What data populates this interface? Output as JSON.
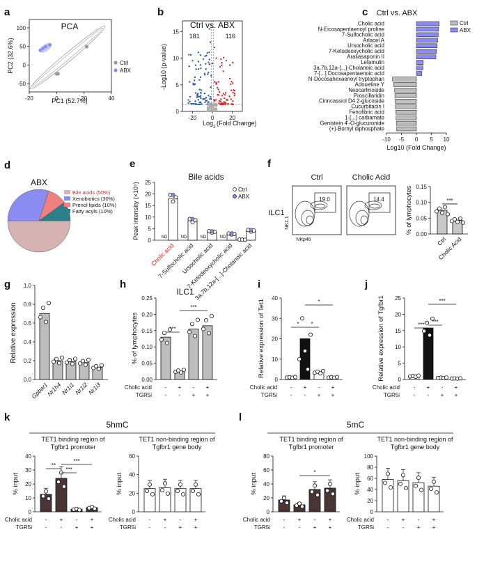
{
  "panel_labels": {
    "a": "a",
    "b": "b",
    "c": "c",
    "d": "d",
    "e": "e",
    "f": "f",
    "g": "g",
    "h": "h",
    "i": "i",
    "j": "j",
    "k": "k",
    "l": "l"
  },
  "colors": {
    "ctrl": "#bdbdbd",
    "abx": "#8b8cf2",
    "red": "#d62728",
    "blue": "#2c5ea8",
    "pink": "#d6b3b3",
    "teal": "#2d7f8a",
    "salmon": "#f08080",
    "dark": "#4a3434",
    "cholic_red": "#e02020"
  },
  "treatment_labels": {
    "cholic": "Cholic acid",
    "tgr5i": "TGR5i",
    "minus": "-",
    "plus": "+"
  },
  "chart_data": [
    {
      "id": "a",
      "type": "scatter",
      "title": "PCA",
      "xlabel": "PC1 (52.7%)",
      "ylabel": "PC2 (32.6%)",
      "xlim": [
        -20,
        40
      ],
      "ylim": [
        -100,
        100
      ],
      "xticks": [
        "-20",
        "0",
        "20",
        "40"
      ],
      "yticks": [
        "100",
        "50",
        "0",
        "-50"
      ],
      "legend": [
        "Ctrl",
        "ABX"
      ],
      "series": [
        {
          "name": "Ctrl",
          "points": [
            [
              0,
              -50
            ],
            [
              1,
              -50
            ],
            [
              22,
              25
            ]
          ]
        },
        {
          "name": "ABX",
          "points": [
            [
              -10,
              20
            ],
            [
              -8,
              25
            ],
            [
              -12,
              15
            ],
            [
              -5,
              30
            ]
          ]
        }
      ]
    },
    {
      "id": "b",
      "type": "scatter",
      "title": "Ctrl vs. ABX",
      "xlabel": "Log2 (Fold Change)",
      "ylabel": "-Log10 (p-value)",
      "xticks": [
        "-20",
        "0",
        "20"
      ],
      "yticks": [
        "15",
        "10",
        "5",
        "0"
      ],
      "count_down": "181",
      "count_up": "116",
      "xlim": [
        -30,
        30
      ],
      "ylim": [
        0,
        17
      ]
    },
    {
      "id": "c",
      "type": "bar",
      "title": "Ctrl vs. ABX",
      "xlabel": "Log10 (Fold Change)",
      "xlim": [
        -10,
        10
      ],
      "xticks": [
        "-10",
        "-5",
        "0",
        "5",
        "10"
      ],
      "legend": [
        "Ctrl",
        "ABX"
      ],
      "categories": [
        "Cholic acid",
        "N-Eicosapentaenoyl proline",
        "7-Sulfocholic acid",
        "Arlacel A",
        "Ursocholic acid",
        "7-Ketodeoxycholic acid",
        "Araliasaponin II",
        "Lefamulin",
        "3a,7b,12a-[...]-Cholanoic acid",
        "7-[...] Docosapentaenoic acid",
        "N-Docosahexaenoyl tryptophan",
        "Adouetine Y",
        "Neocarlinoside",
        "Proscillaridin",
        "Cinncassiol D4 2-glucoside",
        "Cucurbitacin I",
        "Fenofibric acid",
        "1-[...] carbamate",
        "Genistein 4'-O-glucuronide",
        "(+)-Bornyl diphosphate"
      ],
      "values": [
        7.6,
        7.4,
        7.3,
        7.1,
        6.9,
        6.7,
        6.5,
        2.3,
        2.2,
        1.8,
        -8.0,
        -7.6,
        -7.3,
        -7.2,
        -7.1,
        -7.0,
        -6.9,
        -6.8,
        -6.7,
        -6.6
      ]
    },
    {
      "id": "d",
      "type": "pie",
      "title": "ABX",
      "labels": [
        "Bile acids (50%)",
        "Xenobiotics (30%)",
        "Prenol lipids (10%)",
        "Fatty acyls (10%)"
      ],
      "values": [
        50,
        30,
        10,
        10
      ]
    },
    {
      "id": "e",
      "type": "bar",
      "title": "Bile acids",
      "ylabel": "Peak intensity (×10⁵)",
      "ylim": [
        0,
        25
      ],
      "yticks": [
        "0",
        "5",
        "10",
        "15",
        "20",
        "25"
      ],
      "legend": [
        "Ctrl",
        "ABX"
      ],
      "nd_label": "ND",
      "categories": [
        "Cholic acid",
        "7-Sulfocholic acid",
        "Ursocholic acid",
        "7-Ketodeoxycholic acid",
        "3a,7b,12a-[...]-Cholanoic acid"
      ],
      "ctrl": [
        0,
        0,
        0,
        0,
        0
      ],
      "abx": [
        18.2,
        8.5,
        3.6,
        2.7,
        4.1
      ],
      "ctrl_nd": [
        true,
        true,
        true,
        true,
        false
      ],
      "ctrl_small": [
        0,
        0,
        0,
        0,
        0.25
      ]
    },
    {
      "id": "f",
      "type": "flow+bar",
      "panel_titles": [
        "Ctrl",
        "Cholic Acid"
      ],
      "gate_values": [
        "19.0",
        "14.4"
      ],
      "gate_label": "ILC1",
      "x_axis": "NKp46",
      "y_axis": "NK1.1",
      "ylabel": "% of lymphocytes",
      "ylim": [
        0,
        0.15
      ],
      "yticks": [
        "0.00",
        "0.05",
        "0.10",
        "0.15"
      ],
      "categories": [
        "Ctrl",
        "Cholic Acid"
      ],
      "values": [
        0.075,
        0.043
      ],
      "sig": "***"
    },
    {
      "id": "g",
      "type": "bar",
      "ylabel": "Relative expression",
      "ylim": [
        0,
        1.0
      ],
      "yticks": [
        "0.0",
        "0.2",
        "0.4",
        "0.6",
        "0.8",
        "1.0"
      ],
      "categories": [
        "Gpbar1",
        "Nr1h4",
        "Nr1i1",
        "Nr1i2",
        "Nr1i3"
      ],
      "values": [
        0.7,
        0.2,
        0.19,
        0.18,
        0.13
      ]
    },
    {
      "id": "h",
      "type": "bar",
      "title": "ILC1",
      "ylabel": "% of lymphocytes",
      "ylim": [
        0,
        0.25
      ],
      "yticks": [
        "0.00",
        "0.05",
        "0.10",
        "0.15",
        "0.20",
        "0.25"
      ],
      "cholic": [
        "-",
        "+",
        "-",
        "+"
      ],
      "tgr5i": [
        "-",
        "-",
        "+",
        "+"
      ],
      "values": [
        0.13,
        0.025,
        0.155,
        0.165
      ],
      "sig": [
        "***",
        "***"
      ]
    },
    {
      "id": "i",
      "type": "bar",
      "ylabel": "Relative expression of Tet1",
      "ylim": [
        0,
        40
      ],
      "yticks": [
        "0",
        "10",
        "20",
        "30",
        "40"
      ],
      "cholic": [
        "-",
        "+",
        "-",
        "+"
      ],
      "tgr5i": [
        "-",
        "-",
        "+",
        "+"
      ],
      "values": [
        1.0,
        20.0,
        3.5,
        1.0
      ],
      "sig": [
        "*",
        "*",
        "*"
      ]
    },
    {
      "id": "j",
      "type": "bar",
      "ylabel": "Relative expression of Tgfbr1",
      "ylim": [
        0,
        25
      ],
      "yticks": [
        "0",
        "5",
        "10",
        "15",
        "20",
        "25"
      ],
      "cholic": [
        "-",
        "+",
        "-",
        "+"
      ],
      "tgr5i": [
        "-",
        "-",
        "+",
        "+"
      ],
      "values": [
        1.0,
        15.8,
        0.5,
        0.3
      ],
      "sig": [
        "***",
        "***",
        "***"
      ]
    },
    {
      "id": "k",
      "type": "bar-group",
      "title": "5hmC",
      "left": {
        "title": "TET1 binding region of Tgfbr1 promoter",
        "ylabel": "% input",
        "ylim": [
          0,
          40
        ],
        "yticks": [
          "0",
          "10",
          "20",
          "30",
          "40"
        ],
        "values": [
          12.5,
          24,
          1.8,
          3
        ],
        "sig": [
          "**",
          "***",
          "***"
        ]
      },
      "right": {
        "title": "TET1 non-binding region of Tgfbr1 gene body",
        "ylabel": "% input",
        "ylim": [
          0,
          60
        ],
        "yticks": [
          "0",
          "20",
          "40",
          "60"
        ],
        "values": [
          25,
          26,
          25,
          25
        ]
      }
    },
    {
      "id": "l",
      "type": "bar-group",
      "title": "5mC",
      "left": {
        "title": "TET1 binding region of Tgfbr1 promoter",
        "ylabel": "% input",
        "ylim": [
          0,
          80
        ],
        "yticks": [
          "0",
          "20",
          "40",
          "60",
          "80"
        ],
        "values": [
          17,
          10,
          32,
          34
        ],
        "sig": [
          "*"
        ]
      },
      "right": {
        "title": "TET1 non-binding region of Tgfbr1 gene body",
        "ylabel": "% input",
        "ylim": [
          0,
          100
        ],
        "yticks": [
          "0",
          "20",
          "40",
          "60",
          "80",
          "100"
        ],
        "values": [
          58,
          56,
          52,
          46
        ]
      }
    }
  ]
}
